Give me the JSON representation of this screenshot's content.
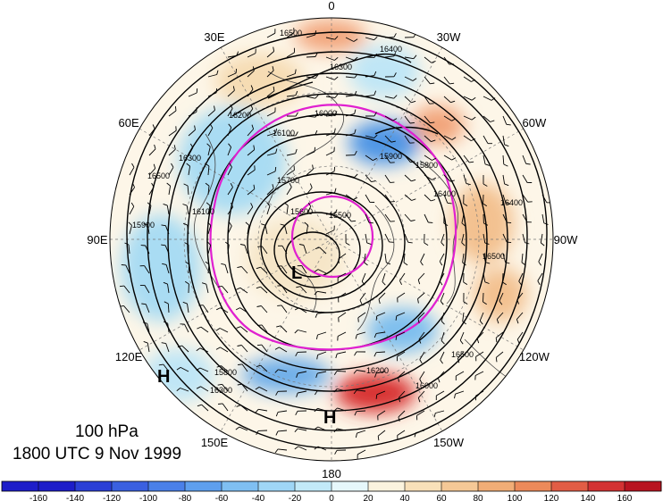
{
  "map": {
    "level": "100 hPa",
    "valid_time": "1800 UTC 9 Nov 1999",
    "longitude_labels": [
      {
        "lon": 0,
        "text": "0"
      },
      {
        "lon": -30,
        "text": "30W"
      },
      {
        "lon": -60,
        "text": "60W"
      },
      {
        "lon": -90,
        "text": "90W"
      },
      {
        "lon": -120,
        "text": "120W"
      },
      {
        "lon": -150,
        "text": "150W"
      },
      {
        "lon": 180,
        "text": "180"
      },
      {
        "lon": 150,
        "text": "150E"
      },
      {
        "lon": 120,
        "text": "120E"
      },
      {
        "lon": 90,
        "text": "90E"
      },
      {
        "lon": 60,
        "text": "60E"
      },
      {
        "lon": 30,
        "text": "30E"
      }
    ],
    "contour_labels": [
      "16500",
      "16400",
      "16300",
      "16200",
      "16100",
      "16000",
      "15900",
      "15800",
      "15700",
      "15600",
      "15500",
      "16400",
      "16500",
      "16300",
      "16100",
      "15900",
      "16200",
      "16000",
      "16300",
      "16500",
      "16400",
      "16500",
      "15800"
    ],
    "pressure_centers": [
      {
        "type": "L",
        "label": "L"
      },
      {
        "type": "H",
        "label": "H"
      },
      {
        "type": "H",
        "label": "H"
      }
    ],
    "colors": {
      "contour": "#000000",
      "jet_line": "#e020d0",
      "neg_light": "#bfe8f5",
      "neg_mid": "#7fc6ee",
      "neg_strong": "#3a86df",
      "pos_light": "#f8e3c0",
      "pos_mid": "#f2b583",
      "pos_strong": "#d22a2a"
    }
  },
  "colorbar": {
    "ticks": [
      "-160",
      "-140",
      "-120",
      "-100",
      "-80",
      "-60",
      "-40",
      "-20",
      "0",
      "20",
      "40",
      "60",
      "80",
      "100",
      "120",
      "140",
      "160"
    ],
    "colors": [
      "#1d1dc9",
      "#2b3fd6",
      "#3a60e0",
      "#4a80e8",
      "#5e9fee",
      "#7fbff2",
      "#9fd6f6",
      "#c2e9f8",
      "#e6f7fb",
      "#fbf3de",
      "#f8e0b9",
      "#f5c896",
      "#f1ad76",
      "#ec8a5a",
      "#e25d45",
      "#d33233",
      "#b81420"
    ]
  }
}
